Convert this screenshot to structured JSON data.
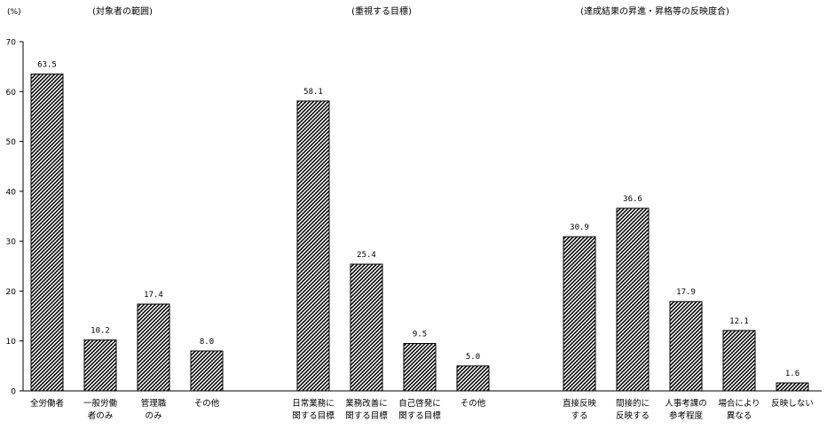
{
  "chart_data": {
    "type": "bar",
    "unit_label": "(%)",
    "ylim": [
      0,
      70
    ],
    "yticks": [
      0,
      10,
      20,
      30,
      40,
      50,
      60,
      70
    ],
    "grid": false,
    "groups": [
      {
        "title": "(対象者の範囲)",
        "bars": [
          {
            "label": [
              "全労働者"
            ],
            "value": 63.5,
            "value_label": "63.5"
          },
          {
            "label": [
              "一般労働",
              "者のみ"
            ],
            "value": 10.2,
            "value_label": "10.2"
          },
          {
            "label": [
              "管理職",
              "のみ"
            ],
            "value": 17.4,
            "value_label": "17.4"
          },
          {
            "label": [
              "その他"
            ],
            "value": 8.0,
            "value_label": "8.0"
          }
        ]
      },
      {
        "title": "(重視する目標)",
        "bars": [
          {
            "label": [
              "日常業務に",
              "関する目標"
            ],
            "value": 58.1,
            "value_label": "58.1"
          },
          {
            "label": [
              "業務改善に",
              "関する目標"
            ],
            "value": 25.4,
            "value_label": "25.4"
          },
          {
            "label": [
              "自己啓発に",
              "関する目標"
            ],
            "value": 9.5,
            "value_label": "9.5"
          },
          {
            "label": [
              "その他"
            ],
            "value": 5.0,
            "value_label": "5.0"
          }
        ]
      },
      {
        "title": "(達成結果の昇進・昇格等の反映度合)",
        "bars": [
          {
            "label": [
              "直接反映",
              "する"
            ],
            "value": 30.9,
            "value_label": "30.9"
          },
          {
            "label": [
              "間接的に",
              "反映する"
            ],
            "value": 36.6,
            "value_label": "36.6"
          },
          {
            "label": [
              "人事考課の",
              "参考程度"
            ],
            "value": 17.9,
            "value_label": "17.9"
          },
          {
            "label": [
              "場合により",
              "異なる"
            ],
            "value": 12.1,
            "value_label": "12.1"
          },
          {
            "label": [
              "反映しない"
            ],
            "value": 1.6,
            "value_label": "1.6"
          }
        ]
      }
    ],
    "colors": {
      "bar_fill": "#ffffff",
      "hatch": "#000000",
      "axis": "#000000"
    }
  }
}
